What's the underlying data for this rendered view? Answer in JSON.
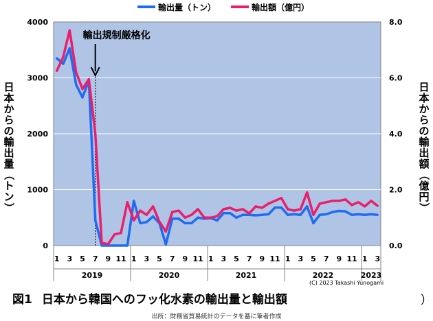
{
  "chart_data": {
    "type": "line",
    "legend": {
      "placement": "top-center",
      "items": [
        {
          "name": "輸出量（トン）",
          "color": "#1e6cf0"
        },
        {
          "name": "輸出額（億円）",
          "color": "#ea1e6a"
        }
      ]
    },
    "ylabel_left": "日本からの輸出量（トン）",
    "ylabel_right": "日本からの輸出額（億円）",
    "y_left": {
      "min": 0,
      "max": 4000,
      "ticks": [
        "0",
        "1000",
        "2000",
        "3000",
        "4000"
      ]
    },
    "y_right": {
      "min": 0,
      "max": 8,
      "ticks": [
        "0.0",
        "2.0",
        "4.0",
        "6.0",
        "8.0"
      ]
    },
    "x_month_labels": [
      "1",
      "3",
      "5",
      "7",
      "9",
      "11",
      "1",
      "3",
      "5",
      "7",
      "9",
      "11",
      "1",
      "3",
      "5",
      "7",
      "9",
      "11",
      "1",
      "3",
      "5",
      "7",
      "9",
      "11",
      "1",
      "3"
    ],
    "x_year_groups": [
      {
        "label": "2019",
        "start": 0,
        "end": 12
      },
      {
        "label": "2020",
        "start": 12,
        "end": 24
      },
      {
        "label": "2021",
        "start": 24,
        "end": 36
      },
      {
        "label": "2022",
        "start": 36,
        "end": 48
      },
      {
        "label": "2023",
        "start": 48,
        "end": 51
      }
    ],
    "plot_background": "#b0c4e6",
    "grid": true,
    "series": [
      {
        "name": "輸出量（トン）",
        "axis": "left",
        "color": "#1e6cf0",
        "x": [
          "2019-01",
          "2019-02",
          "2019-03",
          "2019-04",
          "2019-05",
          "2019-06",
          "2019-07",
          "2019-08",
          "2019-09",
          "2019-10",
          "2019-11",
          "2019-12",
          "2020-01",
          "2020-02",
          "2020-03",
          "2020-04",
          "2020-05",
          "2020-06",
          "2020-07",
          "2020-08",
          "2020-09",
          "2020-10",
          "2020-11",
          "2020-12",
          "2021-01",
          "2021-02",
          "2021-03",
          "2021-04",
          "2021-05",
          "2021-06",
          "2021-07",
          "2021-08",
          "2021-09",
          "2021-10",
          "2021-11",
          "2021-12",
          "2022-01",
          "2022-02",
          "2022-03",
          "2022-04",
          "2022-05",
          "2022-06",
          "2022-07",
          "2022-08",
          "2022-09",
          "2022-10",
          "2022-11",
          "2022-12",
          "2023-01",
          "2023-02",
          "2023-03"
        ],
        "values": [
          3350,
          3250,
          3530,
          2880,
          2650,
          2950,
          450,
          0,
          0,
          0,
          0,
          0,
          800,
          400,
          420,
          520,
          400,
          20,
          480,
          480,
          400,
          400,
          500,
          480,
          490,
          450,
          580,
          580,
          500,
          550,
          550,
          540,
          550,
          560,
          680,
          680,
          550,
          560,
          550,
          700,
          400,
          550,
          560,
          600,
          620,
          610,
          550,
          560,
          550,
          560,
          550
        ]
      },
      {
        "name": "輸出額（億円）",
        "axis": "right",
        "color": "#ea1e6a",
        "x": [
          "2019-01",
          "2019-02",
          "2019-03",
          "2019-04",
          "2019-05",
          "2019-06",
          "2019-07",
          "2019-08",
          "2019-09",
          "2019-10",
          "2019-11",
          "2019-12",
          "2020-01",
          "2020-02",
          "2020-03",
          "2020-04",
          "2020-05",
          "2020-06",
          "2020-07",
          "2020-08",
          "2020-09",
          "2020-10",
          "2020-11",
          "2020-12",
          "2021-01",
          "2021-02",
          "2021-03",
          "2021-04",
          "2021-05",
          "2021-06",
          "2021-07",
          "2021-08",
          "2021-09",
          "2021-10",
          "2021-11",
          "2021-12",
          "2022-01",
          "2022-02",
          "2022-03",
          "2022-04",
          "2022-05",
          "2022-06",
          "2022-07",
          "2022-08",
          "2022-09",
          "2022-10",
          "2022-11",
          "2022-12",
          "2023-01",
          "2023-02",
          "2023-03"
        ],
        "values": [
          6.25,
          6.75,
          7.7,
          6.2,
          5.6,
          5.95,
          4.0,
          0.1,
          0.05,
          0.4,
          0.45,
          1.55,
          0.9,
          1.25,
          1.1,
          1.4,
          0.85,
          0.5,
          1.2,
          1.25,
          1.0,
          1.1,
          1.3,
          1.0,
          1.0,
          1.05,
          1.3,
          1.35,
          1.25,
          1.3,
          1.15,
          1.4,
          1.35,
          1.5,
          1.6,
          1.7,
          1.3,
          1.25,
          1.3,
          1.9,
          1.1,
          1.5,
          1.55,
          1.6,
          1.6,
          1.65,
          1.45,
          1.55,
          1.4,
          1.6,
          1.42
        ]
      }
    ],
    "annotation": {
      "text": "輸出規制厳格化",
      "at": "2019-07"
    }
  },
  "caption": {
    "number": "図1",
    "text": "日本から韓国へのフッ化水素の輸出量と輸出額",
    "close_paren": "）"
  },
  "copyright": "(C) 2023 Takashi Yunogami",
  "source": "出所：財務省貿易統計のデータを基に筆者作成"
}
